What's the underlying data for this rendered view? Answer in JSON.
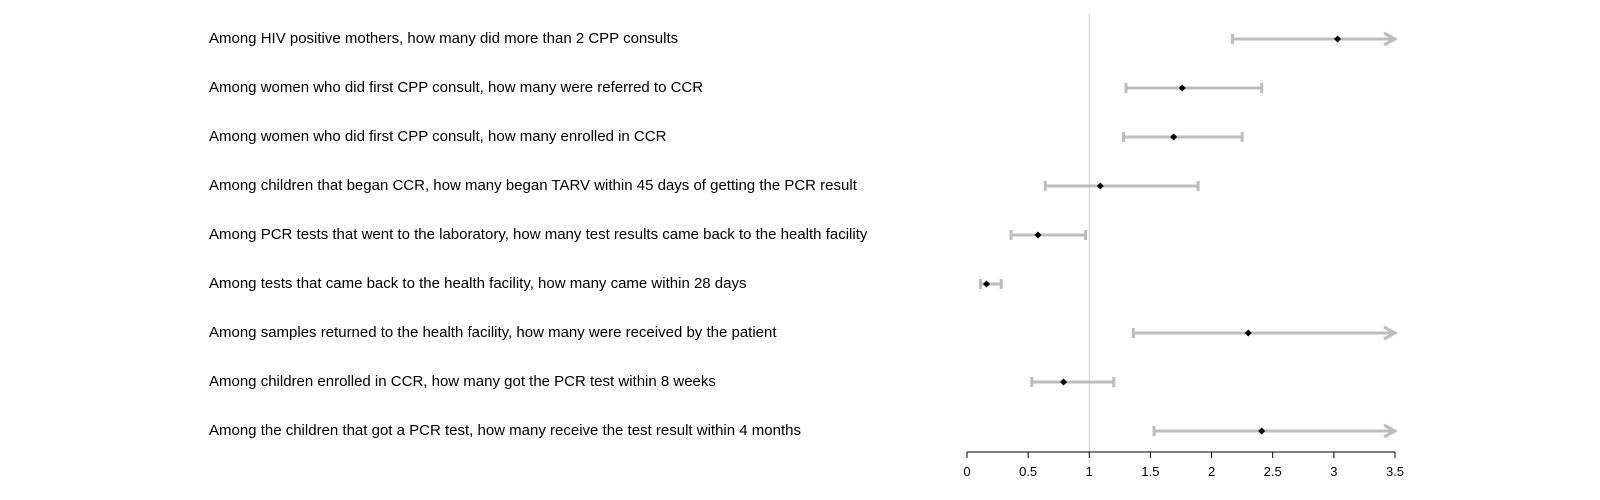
{
  "chart_data": {
    "type": "forest",
    "title": "",
    "xlabel": "",
    "ylabel": "",
    "xlim": [
      0,
      3.5
    ],
    "x_ticks": [
      0,
      0.5,
      1,
      1.5,
      2,
      2.5,
      3,
      3.5
    ],
    "x_tick_labels": [
      "0",
      "0.5",
      "1",
      "1.5",
      "2",
      "2.5",
      "3",
      "3.5"
    ],
    "reference_line": 1,
    "grid": false,
    "colors": {
      "interval": "#bdbdbd",
      "point": "#000000",
      "reference": "#cfcfcf",
      "axis": "#000000"
    },
    "rows": [
      {
        "label": "Among HIV positive mothers, how many did more than 2 CPP consults",
        "estimate": 3.03,
        "lower": 2.17,
        "upper": 3.5,
        "truncated_upper": true
      },
      {
        "label": "Among women who did first CPP consult, how many were referred to CCR",
        "estimate": 1.76,
        "lower": 1.3,
        "upper": 2.41,
        "truncated_upper": false
      },
      {
        "label": "Among women who did first CPP consult, how many enrolled in CCR",
        "estimate": 1.69,
        "lower": 1.28,
        "upper": 2.25,
        "truncated_upper": false
      },
      {
        "label": "Among children that began CCR, how many began TARV within 45 days of getting the PCR result",
        "estimate": 1.09,
        "lower": 0.64,
        "upper": 1.89,
        "truncated_upper": false
      },
      {
        "label": "Among PCR tests that went to the laboratory, how many test results came back to the health facility",
        "estimate": 0.58,
        "lower": 0.36,
        "upper": 0.97,
        "truncated_upper": false
      },
      {
        "label": "Among tests that came back to the health facility, how many came within 28 days",
        "estimate": 0.16,
        "lower": 0.11,
        "upper": 0.28,
        "truncated_upper": false
      },
      {
        "label": "Among samples returned to the health facility, how many were received by the patient",
        "estimate": 2.3,
        "lower": 1.36,
        "upper": 3.5,
        "truncated_upper": true
      },
      {
        "label": "Among children enrolled in CCR, how many got the PCR test within 8 weeks",
        "estimate": 0.79,
        "lower": 0.53,
        "upper": 1.2,
        "truncated_upper": false
      },
      {
        "label": "Among the children that got a PCR test, how many receive the test result within 4 months",
        "estimate": 2.41,
        "lower": 1.53,
        "upper": 3.5,
        "truncated_upper": true
      }
    ]
  }
}
